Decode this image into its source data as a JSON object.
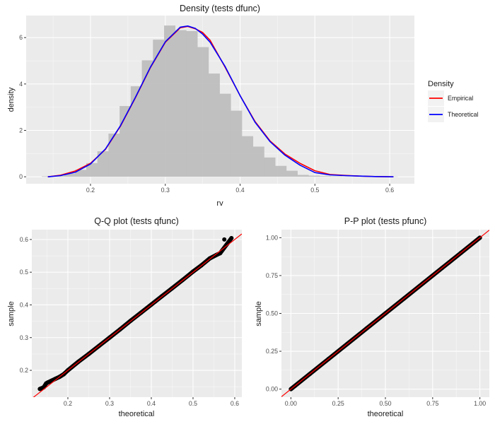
{
  "chart_data": [
    {
      "type": "bar+line",
      "title": "Density (tests dfunc)",
      "xlabel": "rv",
      "ylabel": "density",
      "xlim": [
        0.114,
        0.633
      ],
      "ylim": [
        -0.3,
        6.95
      ],
      "xticks": [
        0.2,
        0.3,
        0.4,
        0.5,
        0.6
      ],
      "xtick_labels": [
        "0.2",
        "0.3",
        "0.4",
        "0.5",
        "0.6"
      ],
      "yticks": [
        0,
        2,
        4,
        6
      ],
      "ytick_labels": [
        "0",
        "2",
        "4",
        "6"
      ],
      "grid": true,
      "histogram": {
        "bin_width": 0.01486,
        "first_bin_left": 0.1349,
        "densities": [
          0.02,
          0.03,
          0.14,
          0.3,
          0.59,
          1.1,
          1.86,
          3.05,
          3.9,
          5.02,
          5.91,
          6.52,
          6.32,
          6.28,
          5.59,
          4.45,
          3.58,
          2.85,
          1.75,
          1.3,
          0.83,
          0.47,
          0.26,
          0.08,
          0.05,
          0.03,
          0.02,
          0.01,
          0.01,
          0.01,
          0.01,
          0.01
        ],
        "color": "#bebebe"
      },
      "legend": {
        "title": "Density",
        "placement": "right"
      },
      "series": [
        {
          "name": "Empirical",
          "color": "#ff0000",
          "x": [
            0.143,
            0.16,
            0.18,
            0.2,
            0.22,
            0.24,
            0.26,
            0.28,
            0.3,
            0.32,
            0.33,
            0.34,
            0.35,
            0.36,
            0.38,
            0.4,
            0.42,
            0.44,
            0.46,
            0.48,
            0.5,
            0.52,
            0.54,
            0.56,
            0.58,
            0.605
          ],
          "y": [
            0,
            0.07,
            0.25,
            0.58,
            1.18,
            2.18,
            3.4,
            4.7,
            5.8,
            6.42,
            6.48,
            6.38,
            6.22,
            5.88,
            4.72,
            3.5,
            2.38,
            1.55,
            0.98,
            0.58,
            0.26,
            0.1,
            0.06,
            0.03,
            0.01,
            0
          ]
        },
        {
          "name": "Theoretical",
          "color": "#0000ff",
          "x": [
            0.143,
            0.16,
            0.18,
            0.2,
            0.22,
            0.24,
            0.26,
            0.28,
            0.3,
            0.32,
            0.33,
            0.34,
            0.35,
            0.36,
            0.38,
            0.4,
            0.42,
            0.44,
            0.46,
            0.48,
            0.5,
            0.52,
            0.54,
            0.56,
            0.58,
            0.605
          ],
          "y": [
            0,
            0.05,
            0.2,
            0.55,
            1.2,
            2.2,
            3.42,
            4.72,
            5.82,
            6.45,
            6.5,
            6.4,
            6.15,
            5.8,
            4.75,
            3.5,
            2.35,
            1.52,
            0.93,
            0.5,
            0.18,
            0.08,
            0.05,
            0.03,
            0.01,
            0
          ]
        }
      ]
    },
    {
      "type": "scatter",
      "title": "Q-Q plot (tests qfunc)",
      "xlabel": "theoretical",
      "ylabel": "sample",
      "xlim": [
        0.1136,
        0.617
      ],
      "ylim": [
        0.118,
        0.63
      ],
      "xticks": [
        0.2,
        0.3,
        0.4,
        0.5,
        0.6
      ],
      "xtick_labels": [
        "0.2",
        "0.3",
        "0.4",
        "0.5",
        "0.6"
      ],
      "yticks": [
        0.2,
        0.3,
        0.4,
        0.5,
        0.6
      ],
      "ytick_labels": [
        "0.2",
        "0.3",
        "0.4",
        "0.5",
        "0.6"
      ],
      "grid": true,
      "reference_line": {
        "slope": 1,
        "intercept": 0,
        "color": "#ff0000"
      },
      "points": [
        [
          0.133,
          0.143
        ],
        [
          0.142,
          0.148
        ],
        [
          0.148,
          0.16
        ],
        [
          0.152,
          0.163
        ],
        [
          0.16,
          0.168
        ],
        [
          0.17,
          0.174
        ],
        [
          0.18,
          0.18
        ],
        [
          0.19,
          0.188
        ],
        [
          0.2,
          0.2
        ],
        [
          0.225,
          0.226
        ],
        [
          0.25,
          0.25
        ],
        [
          0.275,
          0.275
        ],
        [
          0.3,
          0.3
        ],
        [
          0.325,
          0.325
        ],
        [
          0.35,
          0.351
        ],
        [
          0.375,
          0.376
        ],
        [
          0.4,
          0.401
        ],
        [
          0.425,
          0.426
        ],
        [
          0.45,
          0.451
        ],
        [
          0.475,
          0.476
        ],
        [
          0.5,
          0.502
        ],
        [
          0.52,
          0.521
        ],
        [
          0.54,
          0.542
        ],
        [
          0.555,
          0.552
        ],
        [
          0.565,
          0.558
        ],
        [
          0.575,
          0.6
        ],
        [
          0.592,
          0.604
        ]
      ],
      "point_color": "#000000"
    },
    {
      "type": "scatter",
      "title": "P-P plot (tests pfunc)",
      "xlabel": "theoretical",
      "ylabel": "sample",
      "xlim": [
        -0.05,
        1.05
      ],
      "ylim": [
        -0.053,
        1.053
      ],
      "xticks": [
        0,
        0.25,
        0.5,
        0.75,
        1
      ],
      "xtick_labels": [
        "0.00",
        "0.25",
        "0.50",
        "0.75",
        "1.00"
      ],
      "yticks": [
        0,
        0.25,
        0.5,
        0.75,
        1
      ],
      "ytick_labels": [
        "0.00",
        "0.25",
        "0.50",
        "0.75",
        "1.00"
      ],
      "grid": true,
      "reference_line": {
        "slope": 1,
        "intercept": 0,
        "color": "#ff0000"
      },
      "points": [
        [
          0,
          0
        ],
        [
          0.1,
          0.1
        ],
        [
          0.2,
          0.2
        ],
        [
          0.3,
          0.3
        ],
        [
          0.4,
          0.4
        ],
        [
          0.5,
          0.5
        ],
        [
          0.6,
          0.6
        ],
        [
          0.7,
          0.7
        ],
        [
          0.8,
          0.8
        ],
        [
          0.9,
          0.9
        ],
        [
          1,
          1
        ]
      ],
      "point_color": "#000000"
    }
  ]
}
